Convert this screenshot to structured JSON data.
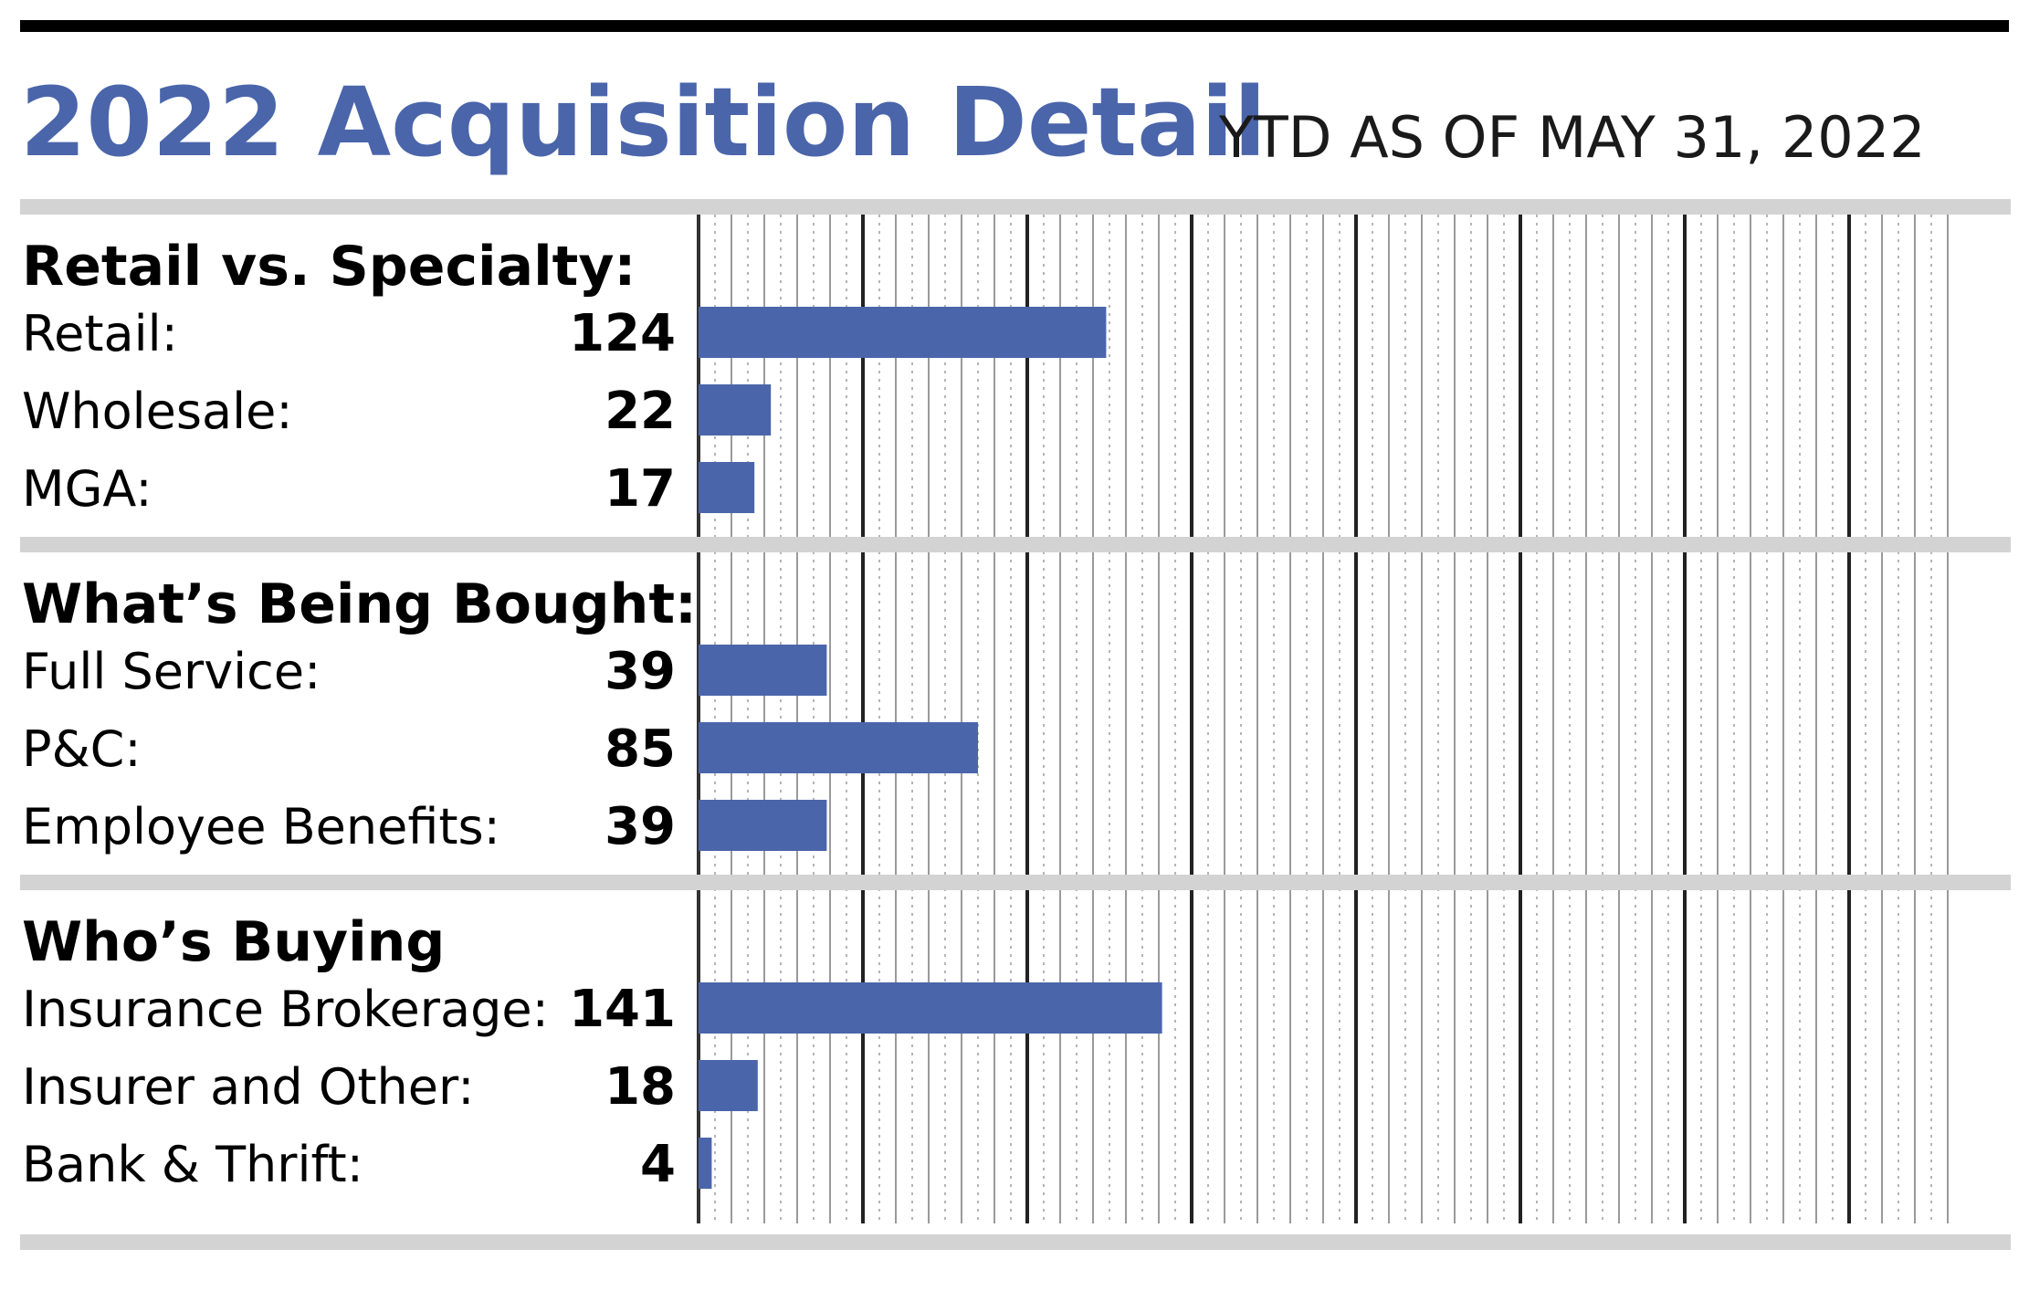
{
  "header": {
    "title": "2022 Acquisition Detail",
    "subtitle": "YTD AS OF MAY 31, 2022"
  },
  "colors": {
    "bar": "#4a65aa",
    "title": "#4a65aa",
    "band": "#d3d3d3",
    "rule": "#000000"
  },
  "chart_data": {
    "type": "bar",
    "orientation": "horizontal",
    "title": "2022 Acquisition Detail",
    "subtitle": "YTD AS OF MAY 31, 2022",
    "xlim": [
      0,
      200
    ],
    "grid": true,
    "groups": [
      {
        "heading": "Retail vs. Specialty:",
        "categories": [
          "Retail:",
          "Wholesale:",
          "MGA:"
        ],
        "values": [
          124,
          22,
          17
        ]
      },
      {
        "heading": "What’s Being Bought:",
        "categories": [
          "Full Service:",
          "P&C:",
          "Employee Benefits:"
        ],
        "values": [
          39,
          85,
          39
        ]
      },
      {
        "heading": "Who’s Buying",
        "categories": [
          "Insurance Brokerage:",
          "Insurer and Other:",
          "Bank & Thrift:"
        ],
        "values": [
          141,
          18,
          4
        ]
      }
    ]
  }
}
